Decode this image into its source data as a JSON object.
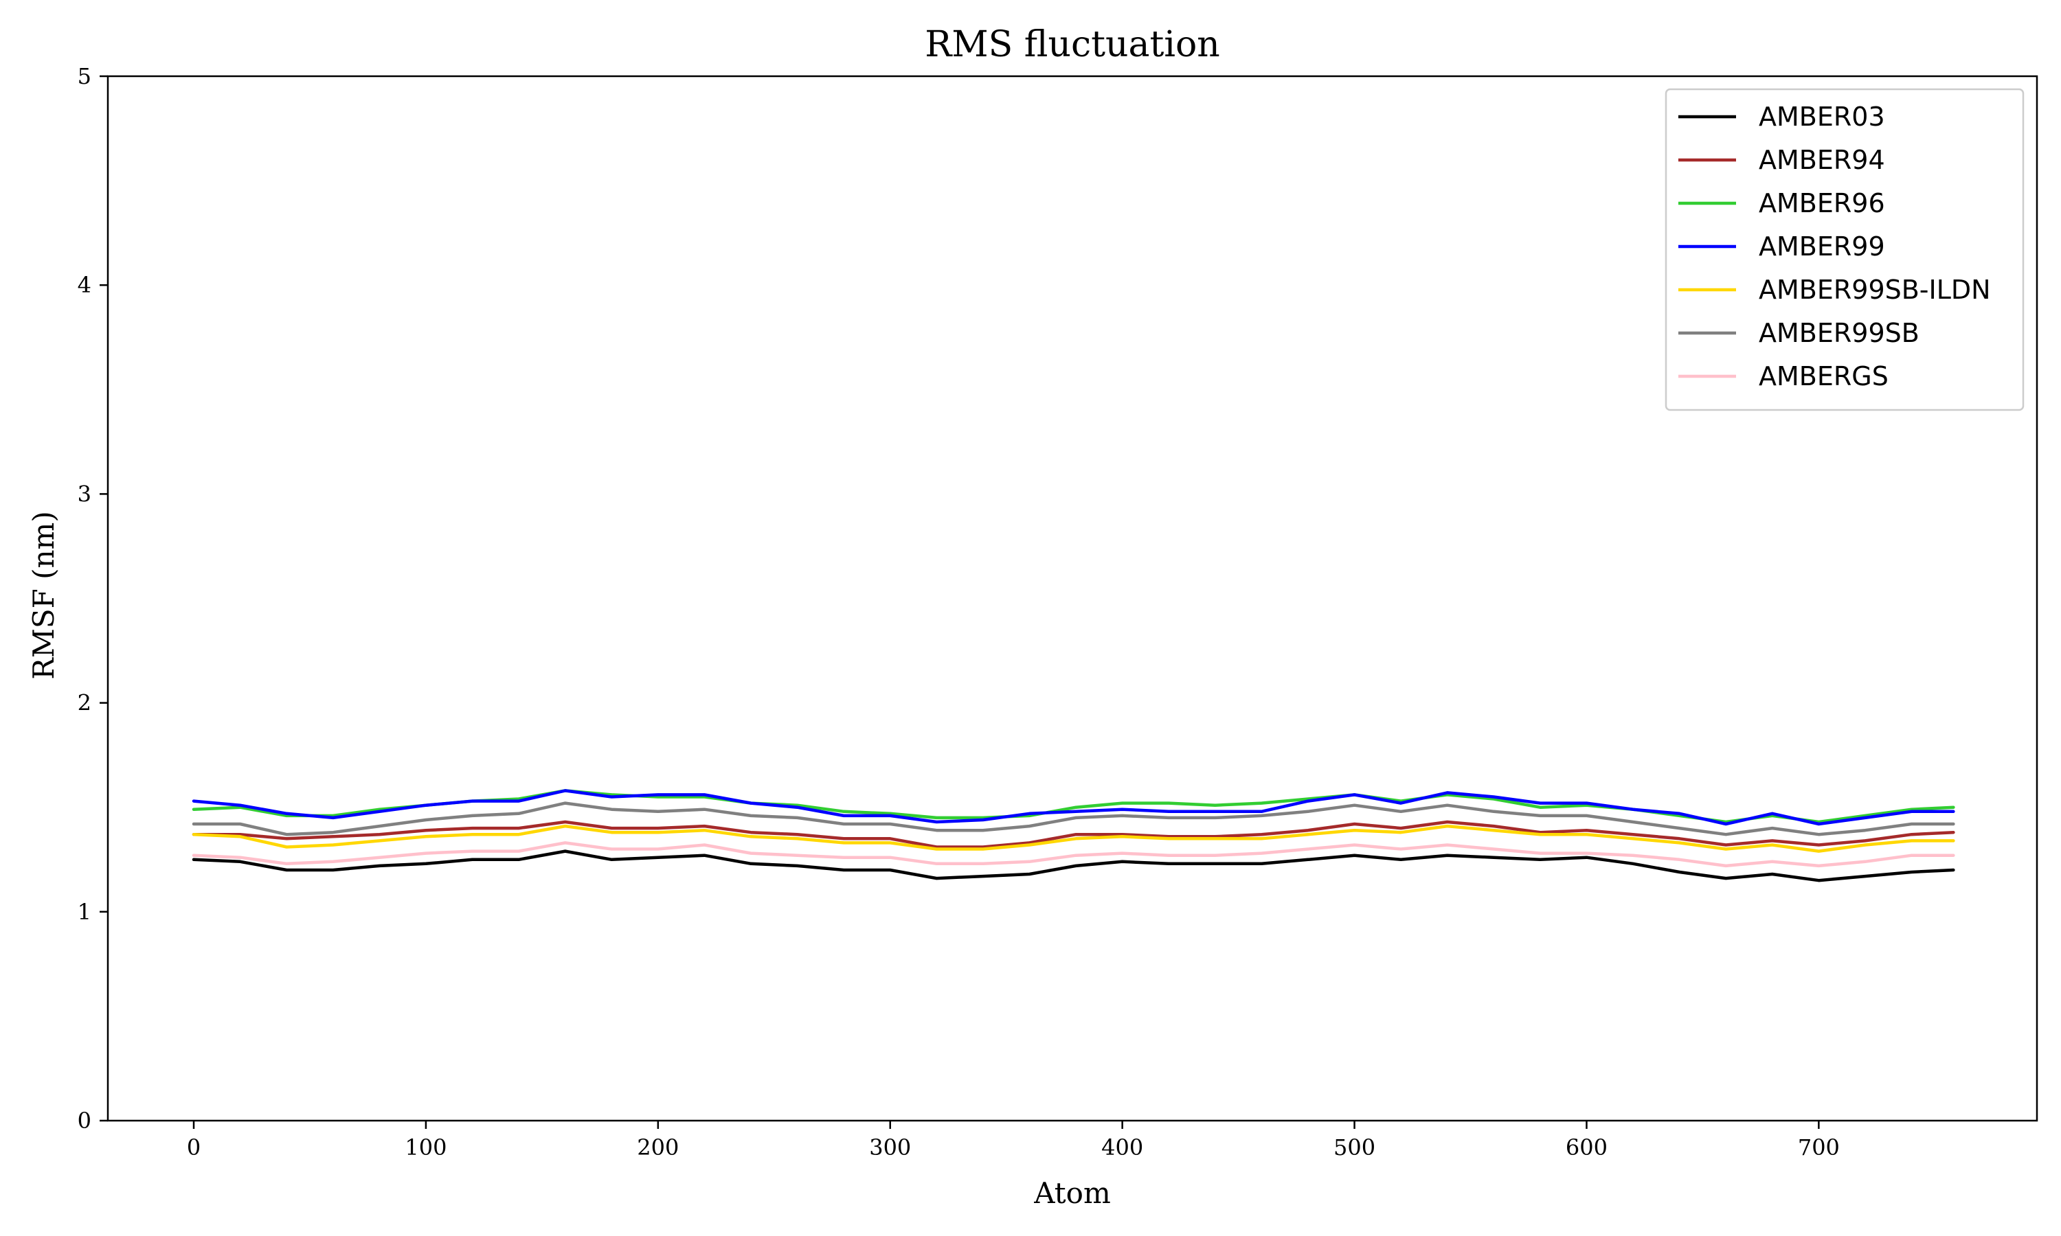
{
  "chart_data": {
    "type": "line",
    "title": "RMS fluctuation",
    "xlabel": "Atom",
    "ylabel": "RMSF (nm)",
    "xlim": [
      -37,
      794
    ],
    "ylim": [
      0,
      5
    ],
    "xticks": [
      0,
      100,
      200,
      300,
      400,
      500,
      600,
      700
    ],
    "yticks": [
      0,
      1,
      2,
      3,
      4,
      5
    ],
    "grid": false,
    "legend_position": "top-right",
    "x": [
      0,
      20,
      40,
      60,
      80,
      100,
      120,
      140,
      160,
      180,
      200,
      220,
      240,
      260,
      280,
      300,
      320,
      340,
      360,
      380,
      400,
      420,
      440,
      460,
      480,
      500,
      520,
      540,
      560,
      580,
      600,
      620,
      640,
      660,
      680,
      700,
      720,
      740,
      758
    ],
    "series": [
      {
        "name": "AMBER03",
        "color": "#000000",
        "values": [
          1.25,
          1.24,
          1.2,
          1.2,
          1.22,
          1.23,
          1.25,
          1.25,
          1.29,
          1.25,
          1.26,
          1.27,
          1.23,
          1.22,
          1.2,
          1.2,
          1.16,
          1.17,
          1.18,
          1.22,
          1.24,
          1.23,
          1.23,
          1.23,
          1.25,
          1.27,
          1.25,
          1.27,
          1.26,
          1.25,
          1.26,
          1.23,
          1.19,
          1.16,
          1.18,
          1.15,
          1.17,
          1.19,
          1.2
        ]
      },
      {
        "name": "AMBER94",
        "color": "#a52a2a",
        "values": [
          1.37,
          1.37,
          1.35,
          1.36,
          1.37,
          1.39,
          1.4,
          1.4,
          1.43,
          1.4,
          1.4,
          1.41,
          1.38,
          1.37,
          1.35,
          1.35,
          1.31,
          1.31,
          1.33,
          1.37,
          1.37,
          1.36,
          1.36,
          1.37,
          1.39,
          1.42,
          1.4,
          1.43,
          1.41,
          1.38,
          1.39,
          1.37,
          1.35,
          1.32,
          1.34,
          1.32,
          1.34,
          1.37,
          1.38
        ]
      },
      {
        "name": "AMBER96",
        "color": "#32cd32",
        "values": [
          1.49,
          1.5,
          1.46,
          1.46,
          1.49,
          1.51,
          1.53,
          1.54,
          1.58,
          1.56,
          1.55,
          1.55,
          1.52,
          1.51,
          1.48,
          1.47,
          1.45,
          1.45,
          1.46,
          1.5,
          1.52,
          1.52,
          1.51,
          1.52,
          1.54,
          1.56,
          1.53,
          1.56,
          1.54,
          1.5,
          1.51,
          1.49,
          1.46,
          1.43,
          1.46,
          1.43,
          1.46,
          1.49,
          1.5
        ]
      },
      {
        "name": "AMBER99",
        "color": "#0000ff",
        "values": [
          1.53,
          1.51,
          1.47,
          1.45,
          1.48,
          1.51,
          1.53,
          1.53,
          1.58,
          1.55,
          1.56,
          1.56,
          1.52,
          1.5,
          1.46,
          1.46,
          1.43,
          1.44,
          1.47,
          1.48,
          1.49,
          1.48,
          1.48,
          1.48,
          1.53,
          1.56,
          1.52,
          1.57,
          1.55,
          1.52,
          1.52,
          1.49,
          1.47,
          1.42,
          1.47,
          1.42,
          1.45,
          1.48,
          1.48
        ]
      },
      {
        "name": "AMBER99SB-ILDN",
        "color": "#ffd700",
        "values": [
          1.37,
          1.36,
          1.31,
          1.32,
          1.34,
          1.36,
          1.37,
          1.37,
          1.41,
          1.38,
          1.38,
          1.39,
          1.36,
          1.35,
          1.33,
          1.33,
          1.3,
          1.3,
          1.32,
          1.35,
          1.36,
          1.35,
          1.35,
          1.35,
          1.37,
          1.39,
          1.38,
          1.41,
          1.39,
          1.37,
          1.37,
          1.35,
          1.33,
          1.3,
          1.32,
          1.29,
          1.32,
          1.34,
          1.34
        ]
      },
      {
        "name": "AMBER99SB",
        "color": "#808080",
        "values": [
          1.42,
          1.42,
          1.37,
          1.38,
          1.41,
          1.44,
          1.46,
          1.47,
          1.52,
          1.49,
          1.48,
          1.49,
          1.46,
          1.45,
          1.42,
          1.42,
          1.39,
          1.39,
          1.41,
          1.45,
          1.46,
          1.45,
          1.45,
          1.46,
          1.48,
          1.51,
          1.48,
          1.51,
          1.48,
          1.46,
          1.46,
          1.43,
          1.4,
          1.37,
          1.4,
          1.37,
          1.39,
          1.42,
          1.42
        ]
      },
      {
        "name": "AMBERGS",
        "color": "#ffc0cb",
        "values": [
          1.27,
          1.26,
          1.23,
          1.24,
          1.26,
          1.28,
          1.29,
          1.29,
          1.33,
          1.3,
          1.3,
          1.32,
          1.28,
          1.27,
          1.26,
          1.26,
          1.23,
          1.23,
          1.24,
          1.27,
          1.28,
          1.27,
          1.27,
          1.28,
          1.3,
          1.32,
          1.3,
          1.32,
          1.3,
          1.28,
          1.28,
          1.27,
          1.25,
          1.22,
          1.24,
          1.22,
          1.24,
          1.27,
          1.27
        ]
      }
    ]
  }
}
